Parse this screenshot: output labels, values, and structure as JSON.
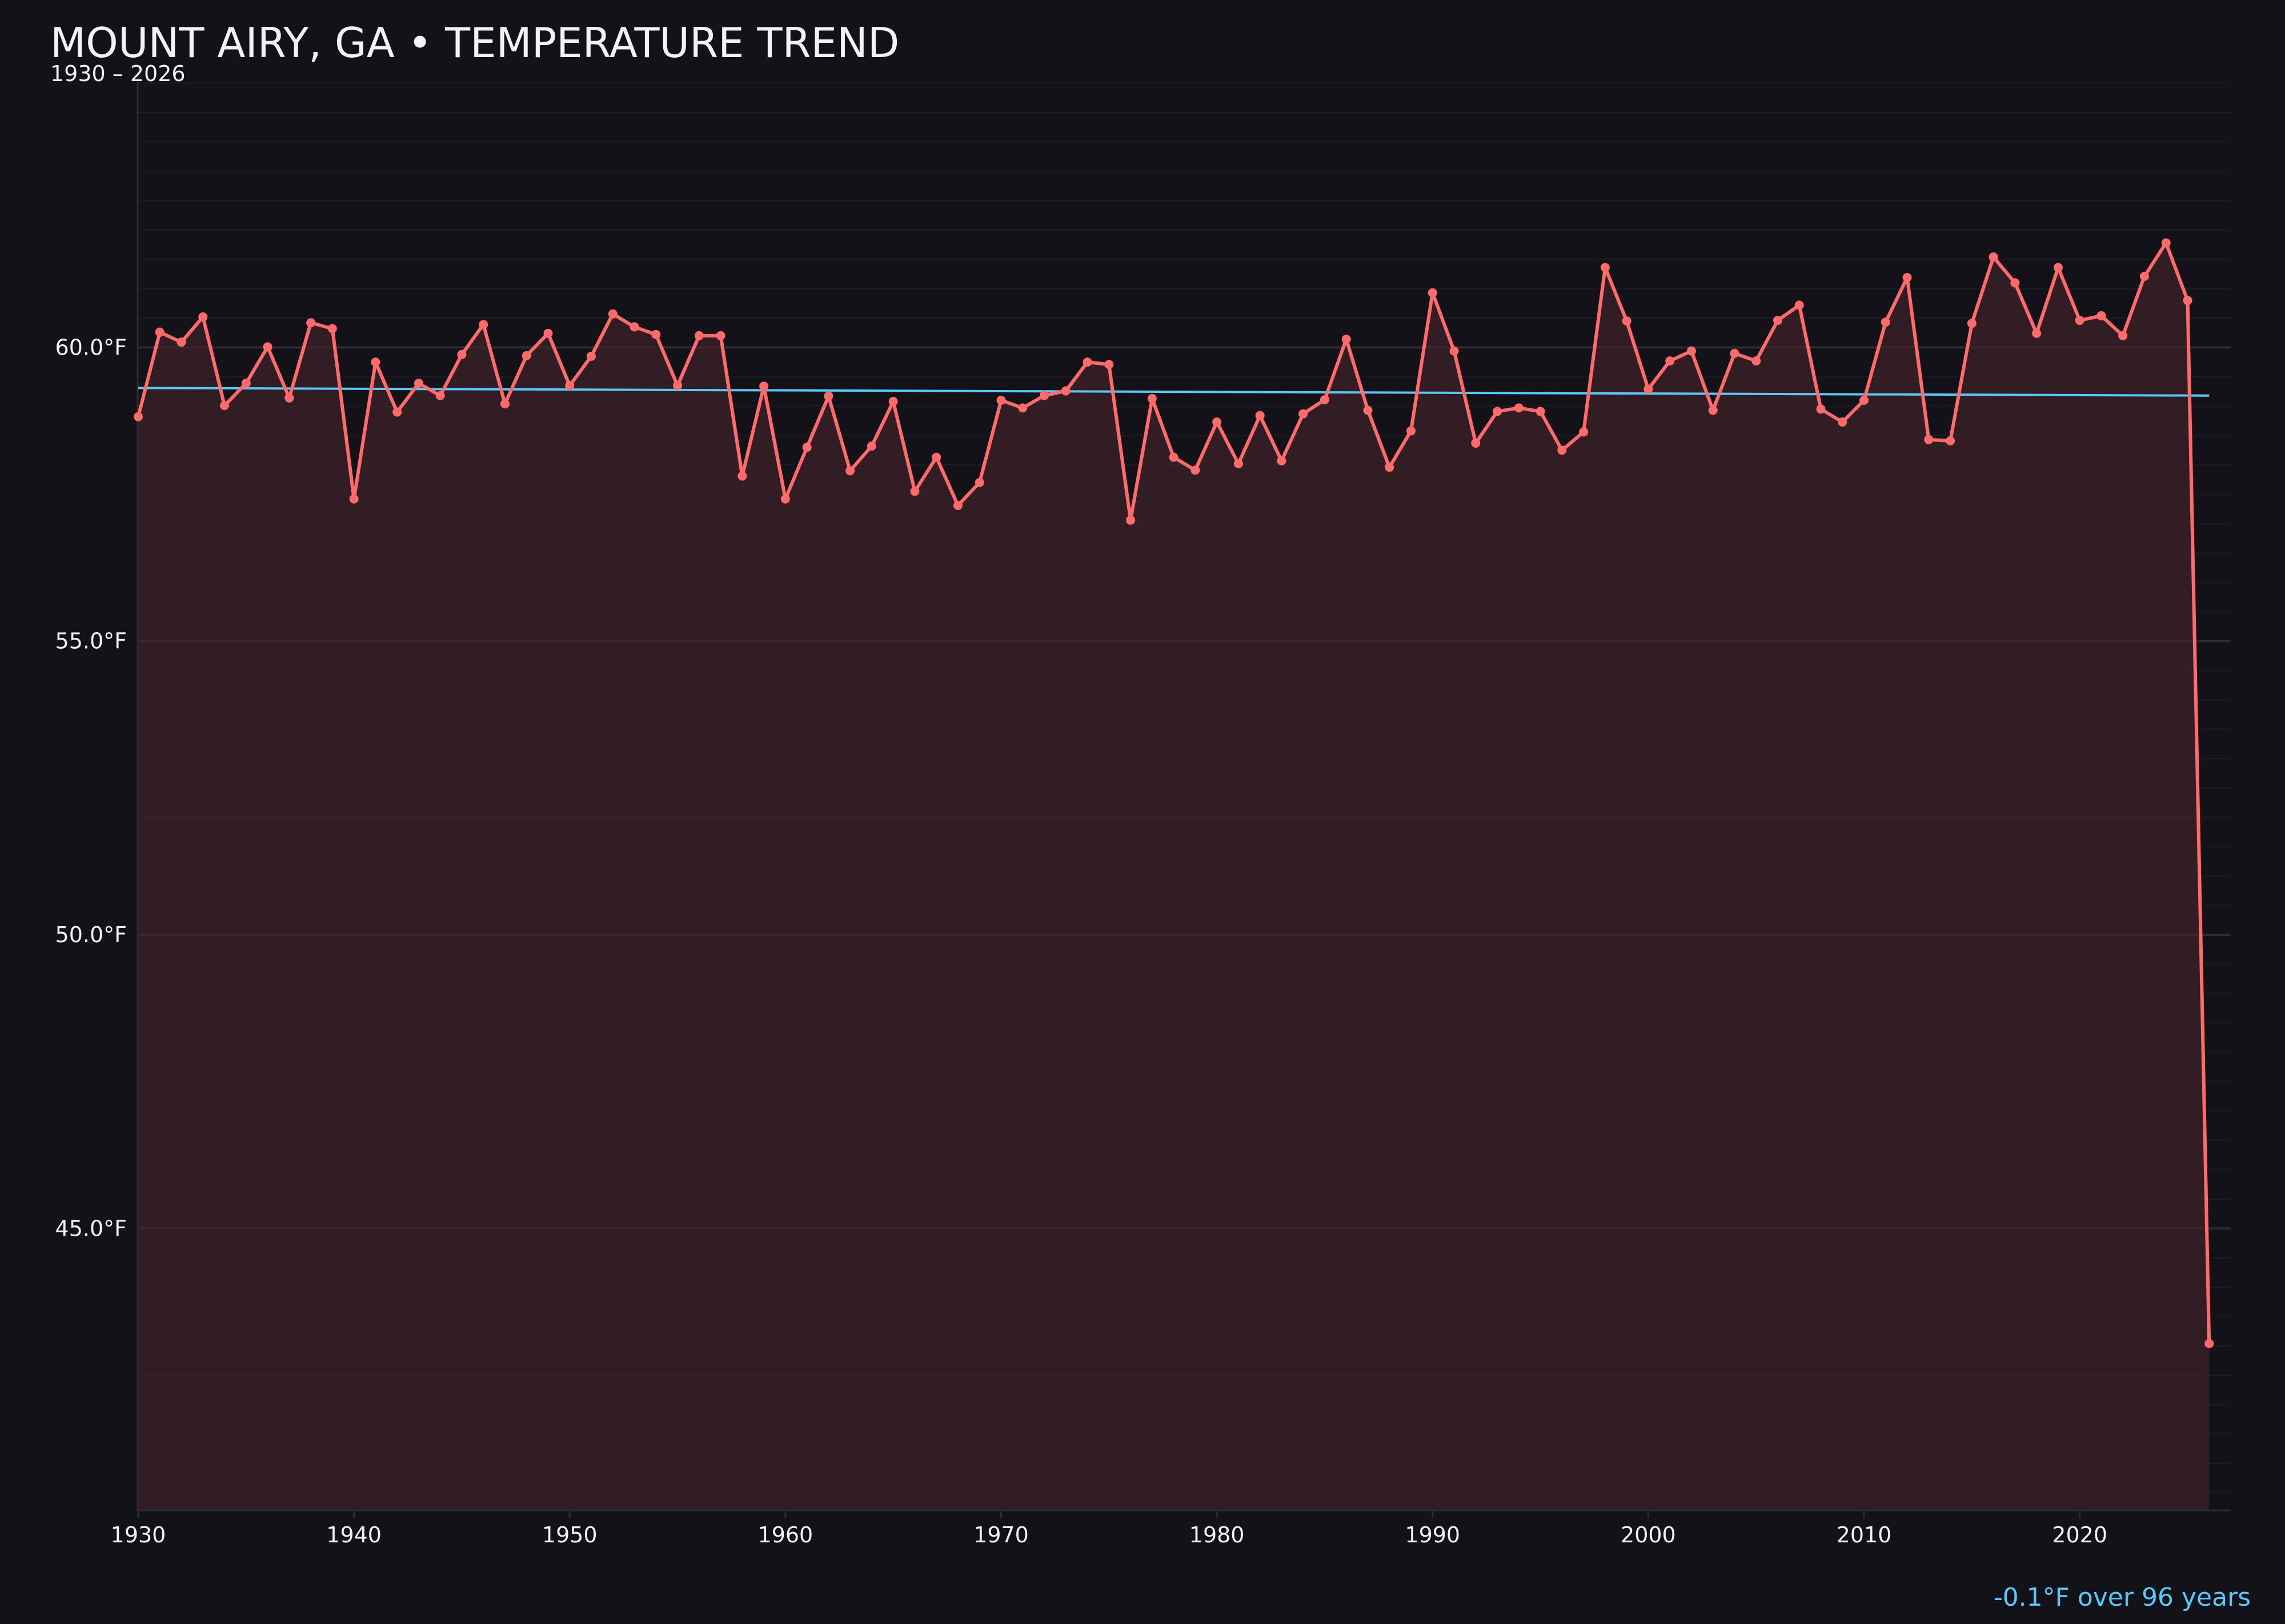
{
  "title": "MOUNT AIRY, GA • TEMPERATURE TREND",
  "subtitle": "1930 – 2026",
  "footer_note": "-0.1°F over 96 years",
  "colors": {
    "background": "#131218",
    "series_line": "#ff6b6b",
    "area_fill": "#351f25",
    "trend_line": "#5ac8fa",
    "text": "#f2f2f7",
    "footer_text": "#5ac8fa"
  },
  "chart_data": {
    "type": "line",
    "title": "MOUNT AIRY, GA • TEMPERATURE TREND",
    "subtitle": "1930 – 2026",
    "xlabel": "",
    "ylabel": "",
    "xlim": [
      1930,
      2027
    ],
    "ylim": [
      40.2,
      64.7
    ],
    "x_ticks": [
      1930,
      1940,
      1950,
      1960,
      1970,
      1980,
      1990,
      2000,
      2010,
      2020
    ],
    "x_tick_labels": [
      "1930",
      "1940",
      "1950",
      "1960",
      "1970",
      "1980",
      "1990",
      "2000",
      "2010",
      "2020"
    ],
    "y_ticks": [
      45,
      50,
      55,
      60
    ],
    "y_tick_labels": [
      "45.0°F",
      "50.0°F",
      "55.0°F",
      "60.0°F"
    ],
    "grid": true,
    "area_fill_under_line": true,
    "markers": true,
    "x": [
      1930,
      1931,
      1932,
      1933,
      1934,
      1935,
      1936,
      1937,
      1938,
      1939,
      1940,
      1941,
      1942,
      1943,
      1944,
      1945,
      1946,
      1947,
      1948,
      1949,
      1950,
      1951,
      1952,
      1953,
      1954,
      1955,
      1956,
      1957,
      1958,
      1959,
      1960,
      1961,
      1962,
      1963,
      1964,
      1965,
      1966,
      1967,
      1968,
      1969,
      1970,
      1971,
      1972,
      1973,
      1974,
      1975,
      1976,
      1977,
      1978,
      1979,
      1980,
      1981,
      1982,
      1983,
      1984,
      1985,
      1986,
      1987,
      1988,
      1989,
      1990,
      1991,
      1992,
      1993,
      1994,
      1995,
      1996,
      1997,
      1998,
      1999,
      2000,
      2001,
      2002,
      2003,
      2004,
      2005,
      2006,
      2007,
      2008,
      2009,
      2010,
      2011,
      2012,
      2013,
      2014,
      2015,
      2016,
      2017,
      2018,
      2019,
      2020,
      2021,
      2022,
      2023,
      2024,
      2025,
      2026
    ],
    "series": [
      {
        "values": [
          58.82,
          60.26,
          60.09,
          60.52,
          59.01,
          59.39,
          60.01,
          59.14,
          60.42,
          60.32,
          57.42,
          59.75,
          58.9,
          59.39,
          59.18,
          59.88,
          60.39,
          59.04,
          59.86,
          60.24,
          59.35,
          59.85,
          60.57,
          60.35,
          60.22,
          59.35,
          60.2,
          60.2,
          57.81,
          59.34,
          57.42,
          58.3,
          59.17,
          57.9,
          58.32,
          59.08,
          57.55,
          58.13,
          57.31,
          57.7,
          59.1,
          58.97,
          59.18,
          59.26,
          59.75,
          59.71,
          57.06,
          59.13,
          58.13,
          57.91,
          58.73,
          58.02,
          58.84,
          58.07,
          58.87,
          59.11,
          60.14,
          58.93,
          57.96,
          58.58,
          60.93,
          59.94,
          58.37,
          58.91,
          58.97,
          58.91,
          58.25,
          58.56,
          61.36,
          60.45,
          59.29,
          59.77,
          59.94,
          58.93,
          59.9,
          59.77,
          60.46,
          60.72,
          58.95,
          58.73,
          59.1,
          60.43,
          61.19,
          58.43,
          58.41,
          60.41,
          61.54,
          61.1,
          60.24,
          61.36,
          60.46,
          60.54,
          60.2,
          61.21,
          61.78,
          60.8,
          43.04
        ]
      }
    ],
    "trend_line": {
      "x": [
        1930,
        2026
      ],
      "y": [
        59.31,
        59.18
      ]
    },
    "annotation": "-0.1°F over 96 years"
  }
}
